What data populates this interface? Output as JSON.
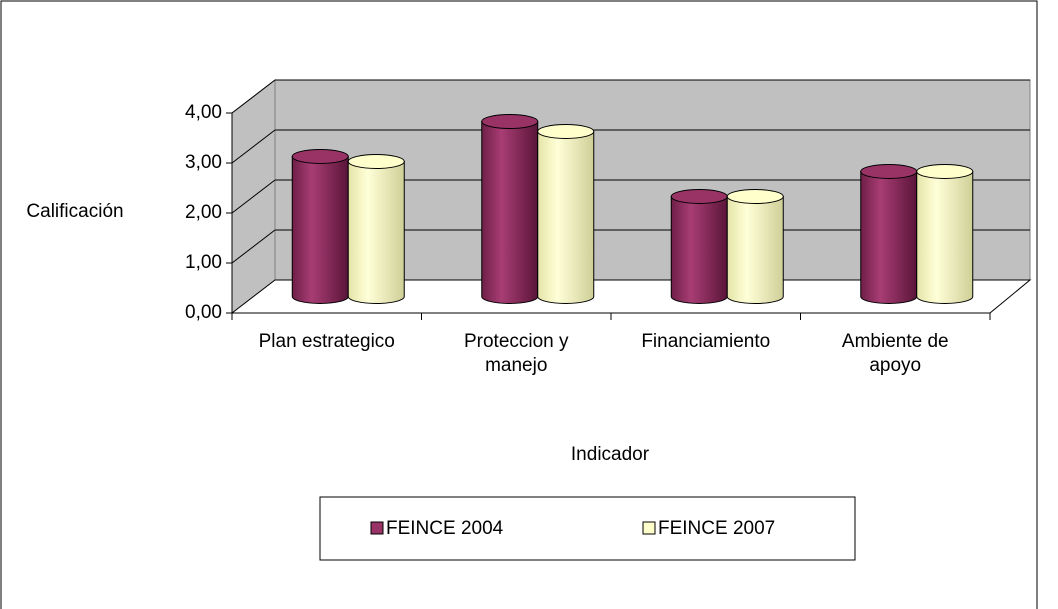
{
  "chart_data": {
    "type": "bar3d",
    "y_label": "Calificación",
    "x_label": "Indicador",
    "categories": [
      "Plan estrategico",
      "Proteccion y manejo",
      "Financiamiento",
      "Ambiente de apoyo"
    ],
    "series": [
      {
        "name": "FEINCE 2004",
        "color": "#993366",
        "values": [
          2.8,
          3.5,
          2.0,
          2.5
        ]
      },
      {
        "name": "FEINCE 2007",
        "color": "#FFFFCC",
        "values": [
          2.7,
          3.3,
          2.0,
          2.5
        ]
      }
    ],
    "ylim": [
      0,
      4
    ],
    "yticks": [
      {
        "value": 0,
        "label": "0,00"
      },
      {
        "value": 1,
        "label": "1,00"
      },
      {
        "value": 2,
        "label": "2,00"
      },
      {
        "value": 3,
        "label": "3,00"
      },
      {
        "value": 4,
        "label": "4,00"
      }
    ],
    "grid": true
  }
}
